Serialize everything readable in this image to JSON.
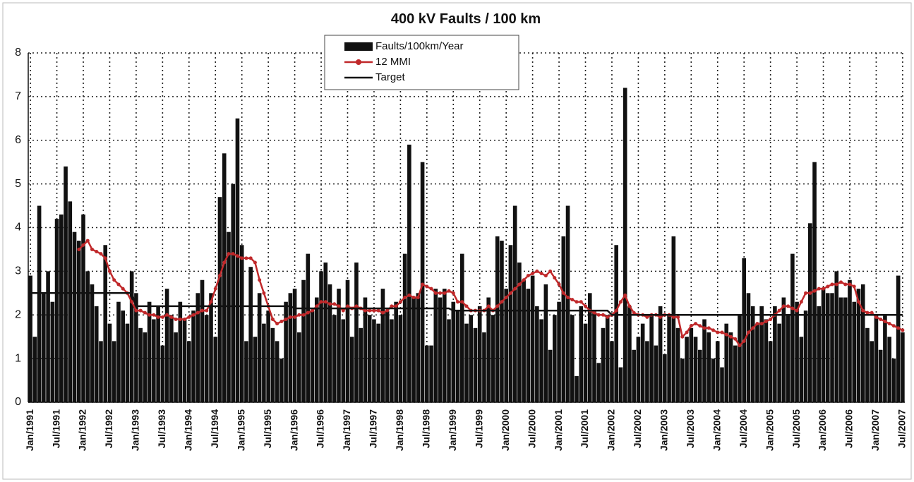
{
  "chart_data": {
    "type": "bar_line",
    "title": "400 kV Faults / 100 km",
    "categories": [
      "Jan/1991",
      null,
      null,
      null,
      null,
      null,
      "Jul/1991",
      null,
      null,
      null,
      null,
      null,
      "Jan/1992",
      null,
      null,
      null,
      null,
      null,
      "Jul/1992",
      null,
      null,
      null,
      null,
      null,
      "Jan/1993",
      null,
      null,
      null,
      null,
      null,
      "Jul/1993",
      null,
      null,
      null,
      null,
      null,
      "Jan/1994",
      null,
      null,
      null,
      null,
      null,
      "Jul/1994",
      null,
      null,
      null,
      null,
      null,
      "Jan/1995",
      null,
      null,
      null,
      null,
      null,
      "Jul/1995",
      null,
      null,
      null,
      null,
      null,
      "Jan/1996",
      null,
      null,
      null,
      null,
      null,
      "Jul/1996",
      null,
      null,
      null,
      null,
      null,
      "Jan/1997",
      null,
      null,
      null,
      null,
      null,
      "Jul/1997",
      null,
      null,
      null,
      null,
      null,
      "Jan/1998",
      null,
      null,
      null,
      null,
      null,
      "Jul/1998",
      null,
      null,
      null,
      null,
      null,
      "Jan/1999",
      null,
      null,
      null,
      null,
      null,
      "Jul/1999",
      null,
      null,
      null,
      null,
      null,
      "Jan/2000",
      null,
      null,
      null,
      null,
      null,
      "Jul/2000",
      null,
      null,
      null,
      null,
      null,
      "Jan/2001",
      null,
      null,
      null,
      null,
      null,
      "Jul/2001",
      null,
      null,
      null,
      null,
      null,
      "Jan/2002",
      null,
      null,
      null,
      null,
      null,
      "Jul/2002",
      null,
      null,
      null,
      null,
      null,
      "Jan/2003",
      null,
      null,
      null,
      null,
      null,
      "Jul/2003",
      null,
      null,
      null,
      null,
      null,
      "Jan/2004",
      null,
      null,
      null,
      null,
      null,
      "Jul/2004",
      null,
      null,
      null,
      null,
      null,
      "Jan/2005",
      null,
      null,
      null,
      null,
      null,
      "Jul/2005",
      null,
      null,
      null,
      null,
      null,
      "Jan/2006",
      null,
      null,
      null,
      null,
      null,
      "Jul/2006",
      null,
      null,
      null,
      null,
      null,
      "Jan/2007",
      null,
      null,
      null,
      null,
      null,
      "Jul/2007"
    ],
    "series": [
      {
        "name": "Faults/100km/Year",
        "kind": "bar",
        "color": "#111111",
        "values": [
          2.9,
          1.5,
          4.5,
          2.5,
          3.0,
          2.3,
          4.2,
          4.3,
          5.4,
          4.6,
          3.9,
          3.7,
          4.3,
          3.0,
          2.7,
          2.2,
          1.4,
          3.6,
          1.8,
          1.4,
          2.3,
          2.1,
          1.8,
          3.0,
          2.5,
          1.7,
          1.6,
          2.3,
          1.9,
          2.2,
          1.3,
          2.6,
          2.0,
          1.6,
          2.3,
          1.9,
          1.4,
          2.1,
          2.5,
          2.8,
          2.0,
          2.5,
          1.5,
          4.7,
          5.7,
          3.9,
          5.0,
          6.5,
          3.6,
          1.4,
          3.1,
          1.5,
          2.5,
          1.8,
          2.1,
          1.7,
          1.4,
          1.0,
          2.3,
          2.5,
          2.6,
          1.6,
          2.8,
          3.4,
          2.1,
          2.4,
          3.0,
          3.2,
          2.7,
          2.0,
          2.6,
          1.9,
          2.8,
          1.5,
          3.2,
          1.7,
          2.4,
          2.0,
          1.9,
          1.8,
          2.6,
          2.1,
          1.9,
          2.3,
          2.0,
          3.4,
          5.9,
          2.4,
          2.5,
          5.5,
          1.3,
          1.3,
          2.6,
          2.4,
          2.6,
          1.9,
          2.3,
          2.1,
          3.4,
          1.8,
          2.0,
          1.7,
          2.2,
          1.6,
          2.4,
          2.0,
          3.8,
          3.7,
          2.6,
          3.6,
          4.5,
          3.2,
          2.8,
          2.6,
          2.9,
          2.2,
          1.9,
          2.7,
          1.2,
          2.0,
          2.3,
          3.8,
          4.5,
          2.0,
          0.6,
          2.2,
          1.8,
          2.5,
          2.1,
          0.9,
          1.7,
          2.0,
          1.4,
          3.6,
          0.8,
          7.2,
          2.2,
          1.2,
          1.5,
          1.8,
          1.4,
          2.0,
          1.3,
          2.2,
          1.1,
          2.0,
          3.8,
          1.7,
          1.0,
          1.5,
          1.7,
          1.5,
          1.2,
          1.9,
          1.6,
          1.0,
          1.4,
          0.8,
          1.8,
          1.6,
          1.3,
          2.0,
          3.3,
          2.5,
          2.2,
          1.8,
          2.2,
          1.9,
          1.4,
          2.2,
          1.8,
          2.4,
          2.0,
          3.4,
          2.3,
          1.5,
          2.1,
          4.1,
          5.5,
          2.2,
          2.6,
          2.5,
          2.5,
          3.0,
          2.4,
          2.4,
          2.8,
          2.3,
          2.6,
          2.7,
          1.7,
          1.4,
          2.0,
          1.2,
          2.0,
          1.5,
          1.0,
          2.9,
          1.6
        ]
      },
      {
        "name": "12 MMI",
        "kind": "line",
        "color": "#c0282a",
        "markers": true,
        "values": [
          null,
          null,
          null,
          null,
          null,
          null,
          null,
          null,
          null,
          null,
          null,
          3.5,
          3.6,
          3.7,
          3.5,
          3.45,
          3.4,
          3.3,
          3.0,
          2.8,
          2.7,
          2.6,
          2.5,
          2.3,
          2.1,
          2.1,
          2.05,
          2.0,
          2.0,
          1.95,
          1.95,
          2.0,
          1.95,
          1.9,
          1.9,
          1.9,
          1.95,
          2.0,
          2.05,
          2.1,
          2.1,
          2.3,
          2.6,
          2.9,
          3.2,
          3.4,
          3.4,
          3.35,
          3.3,
          3.3,
          3.3,
          3.2,
          2.8,
          2.5,
          2.2,
          1.9,
          1.8,
          1.85,
          1.9,
          1.95,
          1.95,
          2.0,
          2.0,
          2.05,
          2.1,
          2.2,
          2.3,
          2.3,
          2.25,
          2.25,
          2.2,
          2.1,
          2.2,
          2.15,
          2.2,
          2.15,
          2.1,
          2.1,
          2.1,
          2.1,
          2.05,
          2.1,
          2.2,
          2.2,
          2.3,
          2.4,
          2.45,
          2.4,
          2.4,
          2.7,
          2.65,
          2.6,
          2.5,
          2.5,
          2.5,
          2.55,
          2.5,
          2.3,
          2.3,
          2.2,
          2.1,
          2.1,
          2.1,
          2.1,
          2.2,
          2.1,
          2.2,
          2.3,
          2.4,
          2.5,
          2.6,
          2.7,
          2.8,
          2.9,
          2.95,
          3.0,
          2.95,
          2.9,
          3.0,
          2.85,
          2.7,
          2.5,
          2.4,
          2.35,
          2.3,
          2.3,
          2.2,
          2.1,
          2.05,
          2.0,
          2.0,
          1.95,
          2.0,
          2.1,
          2.3,
          2.45,
          2.2,
          2.05,
          2.0,
          2.0,
          1.95,
          2.0,
          2.0,
          1.95,
          2.0,
          2.0,
          1.95,
          1.95,
          1.5,
          1.6,
          1.75,
          1.8,
          1.75,
          1.7,
          1.7,
          1.65,
          1.6,
          1.6,
          1.55,
          1.5,
          1.45,
          1.3,
          1.4,
          1.6,
          1.7,
          1.8,
          1.8,
          1.85,
          1.9,
          2.0,
          2.1,
          2.2,
          2.2,
          2.15,
          2.1,
          2.3,
          2.5,
          2.5,
          2.55,
          2.6,
          2.6,
          2.65,
          2.7,
          2.7,
          2.75,
          2.7,
          2.7,
          2.65,
          2.3,
          2.1,
          2.05,
          2.05,
          1.95,
          1.9,
          1.85,
          1.8,
          1.75,
          1.7,
          1.65
        ]
      },
      {
        "name": "Target",
        "kind": "line",
        "color": "#111111",
        "markers": false,
        "values": [
          2.5,
          2.5,
          2.5,
          2.5,
          2.5,
          2.5,
          2.5,
          2.5,
          2.5,
          2.5,
          2.5,
          2.5,
          2.5,
          2.5,
          2.5,
          2.5,
          2.5,
          2.5,
          2.5,
          2.5,
          2.5,
          2.5,
          2.5,
          2.5,
          2.2,
          2.2,
          2.2,
          2.2,
          2.2,
          2.2,
          2.2,
          2.2,
          2.2,
          2.2,
          2.2,
          2.2,
          2.2,
          2.2,
          2.2,
          2.2,
          2.2,
          2.2,
          2.2,
          2.2,
          2.2,
          2.2,
          2.2,
          2.2,
          2.2,
          2.2,
          2.2,
          2.2,
          2.2,
          2.2,
          2.2,
          2.2,
          2.2,
          2.2,
          2.2,
          2.2,
          2.15,
          2.15,
          2.15,
          2.15,
          2.15,
          2.15,
          2.15,
          2.15,
          2.15,
          2.15,
          2.15,
          2.15,
          2.15,
          2.15,
          2.15,
          2.15,
          2.15,
          2.15,
          2.15,
          2.15,
          2.15,
          2.15,
          2.15,
          2.15,
          2.15,
          2.15,
          2.15,
          2.15,
          2.15,
          2.15,
          2.15,
          2.15,
          2.15,
          2.15,
          2.15,
          2.15,
          2.1,
          2.1,
          2.1,
          2.1,
          2.1,
          2.1,
          2.1,
          2.1,
          2.1,
          2.1,
          2.1,
          2.1,
          2.1,
          2.1,
          2.1,
          2.1,
          2.1,
          2.1,
          2.1,
          2.1,
          2.1,
          2.1,
          2.1,
          2.1,
          2.1,
          2.1,
          2.1,
          2.1,
          2.1,
          2.1,
          2.1,
          2.1,
          2.1,
          2.1,
          2.1,
          2.1,
          2.0,
          2.0,
          2.0,
          2.0,
          2.0,
          2.0,
          2.0,
          2.0,
          2.0,
          2.0,
          2.0,
          2.0,
          2.0,
          2.0,
          2.0,
          2.0,
          2.0,
          2.0,
          2.0,
          2.0,
          2.0,
          2.0,
          2.0,
          2.0,
          2.0,
          2.0,
          2.0,
          2.0,
          2.0,
          2.0,
          2.0,
          2.0,
          2.0,
          2.0,
          2.0,
          2.0,
          2.0,
          2.0,
          2.0,
          2.0,
          2.0,
          2.0,
          2.0,
          2.0,
          2.0,
          2.0,
          2.0,
          2.0,
          2.0,
          2.0,
          2.0,
          2.0,
          2.0,
          2.0,
          2.0,
          2.0,
          2.0,
          2.0,
          2.0,
          2.0,
          2.0,
          2.0,
          2.0,
          2.0,
          2.0,
          2.0,
          2.0
        ]
      }
    ],
    "ylim": [
      0,
      8
    ],
    "yticks": [
      0,
      1,
      2,
      3,
      4,
      5,
      6,
      7,
      8
    ],
    "grid": true,
    "legend": "top"
  }
}
